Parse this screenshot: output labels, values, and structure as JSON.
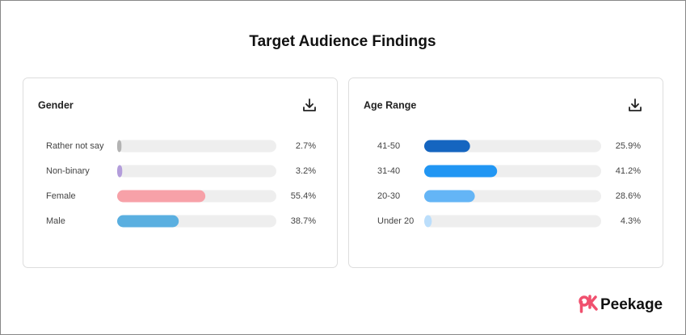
{
  "page": {
    "title": "Target Audience Findings",
    "brand": "Peekage"
  },
  "chart_data": [
    {
      "type": "bar",
      "orientation": "horizontal",
      "title": "Gender",
      "categories": [
        "Rather not say",
        "Non-binary",
        "Female",
        "Male"
      ],
      "values": [
        2.7,
        3.2,
        55.4,
        38.7
      ],
      "value_labels": [
        "2.7%",
        "3.2%",
        "55.4%",
        "38.7%"
      ],
      "colors": [
        "#b3b3b3",
        "#b39ddb",
        "#f7a1a8",
        "#5aafe0"
      ],
      "xlim": [
        0,
        100
      ]
    },
    {
      "type": "bar",
      "orientation": "horizontal",
      "title": "Age Range",
      "categories": [
        "41-50",
        "31-40",
        "20-30",
        "Under 20"
      ],
      "values": [
        25.9,
        41.2,
        28.6,
        4.3
      ],
      "value_labels": [
        "25.9%",
        "41.2%",
        "28.6%",
        "4.3%"
      ],
      "colors": [
        "#1565c0",
        "#2196f3",
        "#64b5f6",
        "#bbdefb"
      ],
      "xlim": [
        0,
        100
      ]
    }
  ]
}
